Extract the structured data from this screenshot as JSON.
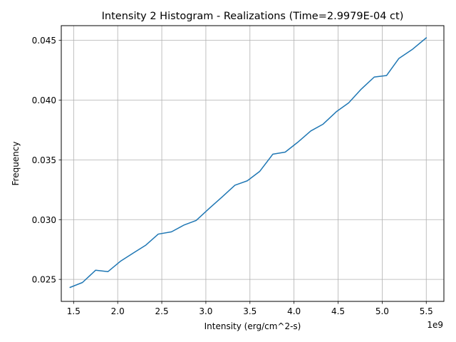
{
  "chart_data": {
    "type": "line",
    "title": "Intensity 2 Histogram - Realizations (Time=2.9979E-04 ct)",
    "xlabel": "Intensity (erg/cm^2-s)",
    "ylabel": "Frequency",
    "x_offset_label": "1e9",
    "xlim": [
      1360000000.0,
      5700000000.0
    ],
    "ylim": [
      0.02316,
      0.04623
    ],
    "grid": true,
    "x_ticks": [
      {
        "value": 1500000000.0,
        "label": "1.5"
      },
      {
        "value": 2000000000.0,
        "label": "2.0"
      },
      {
        "value": 2500000000.0,
        "label": "2.5"
      },
      {
        "value": 3000000000.0,
        "label": "3.0"
      },
      {
        "value": 3500000000.0,
        "label": "3.5"
      },
      {
        "value": 4000000000.0,
        "label": "4.0"
      },
      {
        "value": 4500000000.0,
        "label": "4.5"
      },
      {
        "value": 5000000000.0,
        "label": "5.0"
      },
      {
        "value": 5500000000.0,
        "label": "5.5"
      }
    ],
    "y_ticks": [
      {
        "value": 0.025,
        "label": "0.025"
      },
      {
        "value": 0.03,
        "label": "0.030"
      },
      {
        "value": 0.035,
        "label": "0.035"
      },
      {
        "value": 0.04,
        "label": "0.040"
      },
      {
        "value": 0.045,
        "label": "0.045"
      }
    ],
    "series": [
      {
        "color": "#1f77b4",
        "x": [
          1460000000.0,
          1600000000.0,
          1750000000.0,
          1890000000.0,
          2030000000.0,
          2180000000.0,
          2320000000.0,
          2460000000.0,
          2610000000.0,
          2750000000.0,
          2890000000.0,
          3040000000.0,
          3180000000.0,
          3330000000.0,
          3470000000.0,
          3610000000.0,
          3760000000.0,
          3900000000.0,
          4040000000.0,
          4190000000.0,
          4330000000.0,
          4480000000.0,
          4620000000.0,
          4760000000.0,
          4910000000.0,
          5050000000.0,
          5190000000.0,
          5340000000.0,
          5500000000.0
        ],
        "y": [
          0.02433,
          0.02474,
          0.02577,
          0.02565,
          0.02651,
          0.02722,
          0.02787,
          0.02879,
          0.02898,
          0.02954,
          0.02993,
          0.03095,
          0.03187,
          0.03288,
          0.03325,
          0.03403,
          0.03548,
          0.03565,
          0.03646,
          0.03742,
          0.03799,
          0.03903,
          0.03977,
          0.0409,
          0.04193,
          0.04206,
          0.04349,
          0.04423,
          0.04521
        ]
      }
    ]
  }
}
